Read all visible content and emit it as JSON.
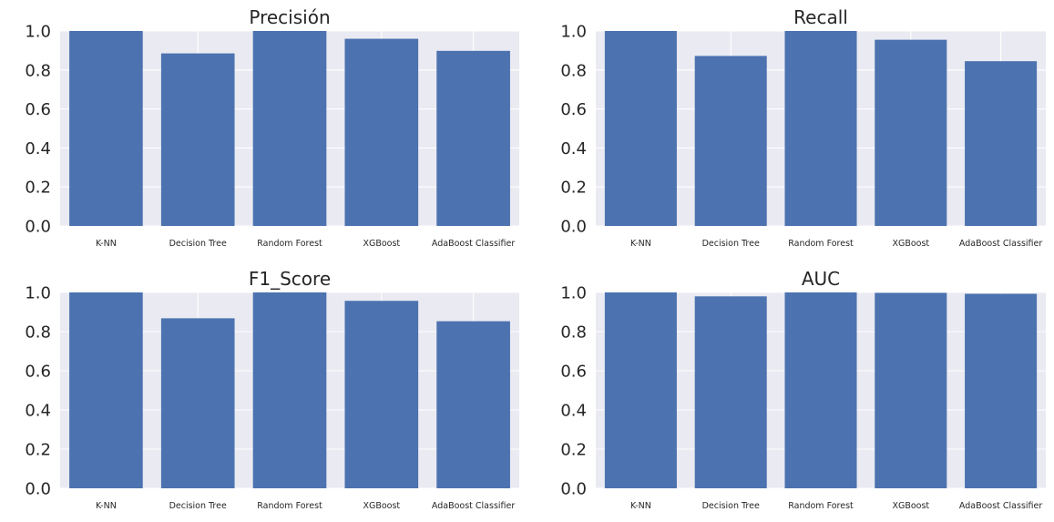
{
  "figure": {
    "colors": {
      "background": "#eaeaf2",
      "bar": "#4c72b0",
      "grid": "#ffffff",
      "text": "#262626"
    }
  },
  "chart_data": [
    {
      "type": "bar",
      "title": "Precisión",
      "categories": [
        "K-NN",
        "Decision Tree",
        "Random Forest",
        "XGBoost",
        "AdaBoost Classifier"
      ],
      "values": [
        1.0,
        0.885,
        1.0,
        0.96,
        0.898
      ],
      "ylim": [
        0,
        1.0
      ],
      "yticks": [
        "0.0",
        "0.2",
        "0.4",
        "0.6",
        "0.8",
        "1.0"
      ],
      "grid": true
    },
    {
      "type": "bar",
      "title": "Recall",
      "categories": [
        "K-NN",
        "Decision Tree",
        "Random Forest",
        "XGBoost",
        "AdaBoost Classifier"
      ],
      "values": [
        1.0,
        0.872,
        1.0,
        0.955,
        0.845
      ],
      "ylim": [
        0,
        1.0
      ],
      "yticks": [
        "0.0",
        "0.2",
        "0.4",
        "0.6",
        "0.8",
        "1.0"
      ],
      "grid": true
    },
    {
      "type": "bar",
      "title": "F1_Score",
      "categories": [
        "K-NN",
        "Decision Tree",
        "Random Forest",
        "XGBoost",
        "AdaBoost Classifier"
      ],
      "values": [
        1.0,
        0.868,
        1.0,
        0.957,
        0.853
      ],
      "ylim": [
        0,
        1.0
      ],
      "yticks": [
        "0.0",
        "0.2",
        "0.4",
        "0.6",
        "0.8",
        "1.0"
      ],
      "grid": true
    },
    {
      "type": "bar",
      "title": "AUC",
      "categories": [
        "K-NN",
        "Decision Tree",
        "Random Forest",
        "XGBoost",
        "AdaBoost Classifier"
      ],
      "values": [
        1.0,
        0.98,
        1.0,
        0.998,
        0.993
      ],
      "ylim": [
        0,
        1.0
      ],
      "yticks": [
        "0.0",
        "0.2",
        "0.4",
        "0.6",
        "0.8",
        "1.0"
      ],
      "grid": true
    }
  ]
}
